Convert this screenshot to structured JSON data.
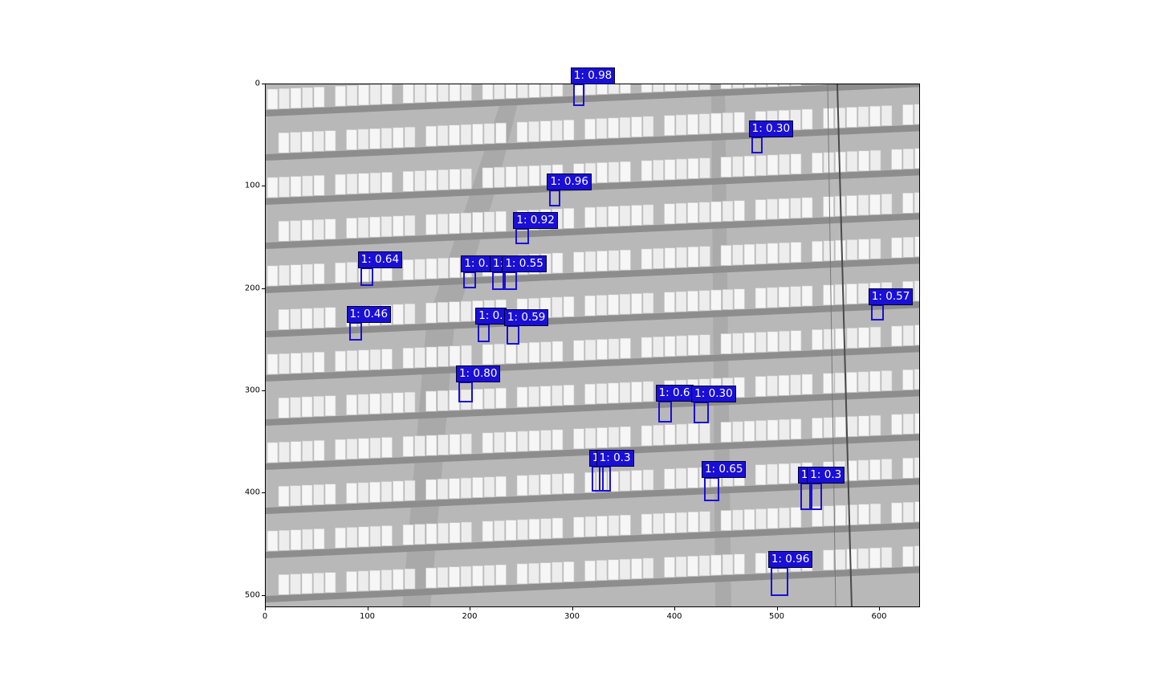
{
  "figure": {
    "image_description_kind": "aerial grayscale photo of solar panel rows",
    "x_ticks": [
      "0",
      "100",
      "200",
      "300",
      "400",
      "500",
      "600"
    ],
    "y_ticks": [
      "0",
      "100",
      "200",
      "300",
      "400",
      "500"
    ],
    "x_range": [
      0,
      640
    ],
    "y_range": [
      512,
      0
    ],
    "box_color": "#1a0fd6",
    "label_text_color": "#ffffff"
  },
  "detections": [
    {
      "label": "1: 0.98",
      "x": 301,
      "y": 0,
      "w": 11,
      "h": 22
    },
    {
      "label": "1: 0.30",
      "x": 475,
      "y": 52,
      "w": 11,
      "h": 16
    },
    {
      "label": "1: 0.96",
      "x": 278,
      "y": 104,
      "w": 11,
      "h": 16
    },
    {
      "label": "1: 0.92",
      "x": 245,
      "y": 141,
      "w": 13,
      "h": 16
    },
    {
      "label": "1: 0.64",
      "x": 93,
      "y": 180,
      "w": 13,
      "h": 18
    },
    {
      "label": "1: 0.1",
      "x": 194,
      "y": 184,
      "w": 12,
      "h": 16
    },
    {
      "label": "1: 0.62",
      "x": 222,
      "y": 184,
      "w": 12,
      "h": 18
    },
    {
      "label": "1: 0.55",
      "x": 234,
      "y": 184,
      "w": 12,
      "h": 18
    },
    {
      "label": "1: 0.57",
      "x": 592,
      "y": 216,
      "w": 13,
      "h": 16
    },
    {
      "label": "1: 0.46",
      "x": 82,
      "y": 233,
      "w": 13,
      "h": 18
    },
    {
      "label": "1: 0.",
      "x": 208,
      "y": 235,
      "w": 12,
      "h": 18
    },
    {
      "label": "1: 0.59",
      "x": 236,
      "y": 236,
      "w": 13,
      "h": 19
    },
    {
      "label": "1: 0.80",
      "x": 189,
      "y": 291,
      "w": 14,
      "h": 21
    },
    {
      "label": "1: 0.6",
      "x": 384,
      "y": 310,
      "w": 14,
      "h": 21
    },
    {
      "label": "1: 0.30",
      "x": 419,
      "y": 311,
      "w": 15,
      "h": 21
    },
    {
      "label": "1: 0.36",
      "x": 319,
      "y": 374,
      "w": 12,
      "h": 25
    },
    {
      "label": "1: 0.3",
      "x": 326,
      "y": 374,
      "w": 12,
      "h": 25
    },
    {
      "label": "1: 0.65",
      "x": 429,
      "y": 385,
      "w": 15,
      "h": 23
    },
    {
      "label": "1: 0.29",
      "x": 523,
      "y": 390,
      "w": 12,
      "h": 27
    },
    {
      "label": "1: 0.3",
      "x": 532,
      "y": 390,
      "w": 12,
      "h": 27
    },
    {
      "label": "1: 0.96",
      "x": 494,
      "y": 473,
      "w": 17,
      "h": 28
    }
  ]
}
